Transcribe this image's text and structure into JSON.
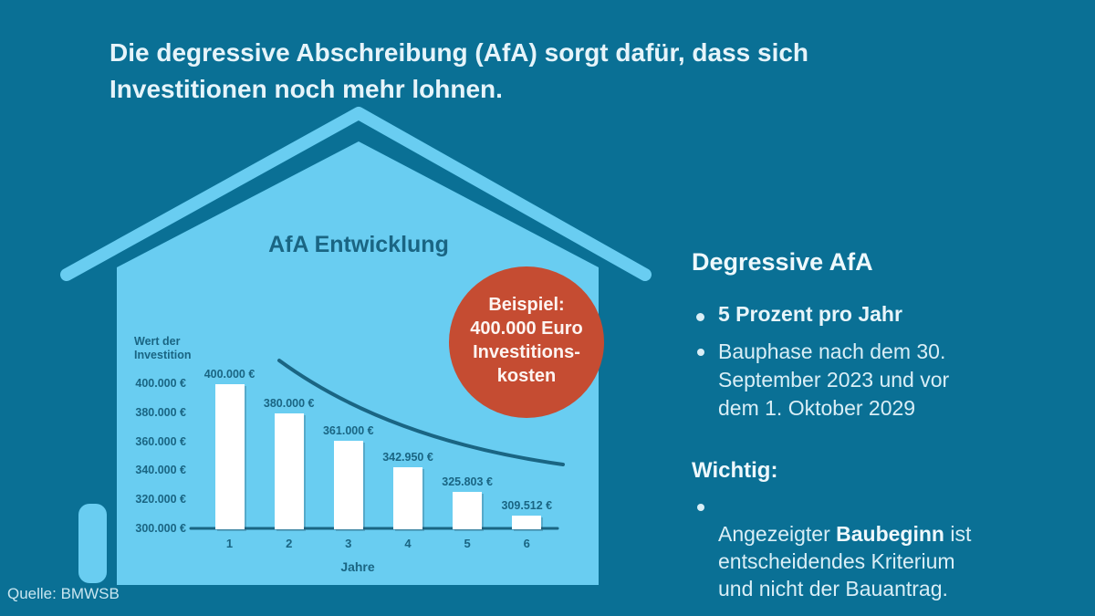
{
  "header": {
    "title": "Die degressive Abschreibung (AfA) sorgt dafür, dass sich\nInvestitionen noch mehr lohnen."
  },
  "chart_data": {
    "type": "bar",
    "title": "AfA Entwicklung",
    "categories": [
      "1",
      "2",
      "3",
      "4",
      "5",
      "6"
    ],
    "values": [
      400000,
      380000,
      361000,
      342950,
      325803,
      309512
    ],
    "bar_labels": [
      "400.000 €",
      "380.000 €",
      "361.000 €",
      "342.950 €",
      "325.803 €",
      "309.512 €"
    ],
    "xlabel": "Jahre",
    "ylabel": "Wert der\nInvestition",
    "y_ticks": [
      {
        "label": "400.000 €",
        "value": 400000
      },
      {
        "label": "380.000 €",
        "value": 380000
      },
      {
        "label": "360.000 €",
        "value": 360000
      },
      {
        "label": "340.000 €",
        "value": 340000
      },
      {
        "label": "320.000 €",
        "value": 320000
      },
      {
        "label": "300.000 €",
        "value": 300000
      }
    ],
    "ylim": [
      300000,
      408000
    ],
    "grid": false,
    "legend": false,
    "bar_color": "#ffffff",
    "overlay": "declining exponential trend curve"
  },
  "badge": {
    "text": "Beispiel:\n400.000 Euro\nInvestitions-\nkosten"
  },
  "right_panel": {
    "heading": "Degressive AfA",
    "bullet1": "5 Prozent pro Jahr",
    "bullet2": "Bauphase nach dem 30.\nSeptember 2023 und vor\ndem 1. Oktober 2029",
    "subheading": "Wichtig:",
    "bullet3_prefix": "Angezeigter ",
    "bullet3_bold": "Baubeginn",
    "bullet3_suffix": " ist\nentscheidendes Kriterium\nund nicht der Bauantrag."
  },
  "footer": {
    "source": "Quelle: BMWSB"
  },
  "colors": {
    "background": "#0a7095",
    "house": "#69cdf1",
    "chart_ink": "#1a6583",
    "badge": "#c54c32",
    "text_light": "#d9eef6",
    "bar": "#ffffff"
  }
}
